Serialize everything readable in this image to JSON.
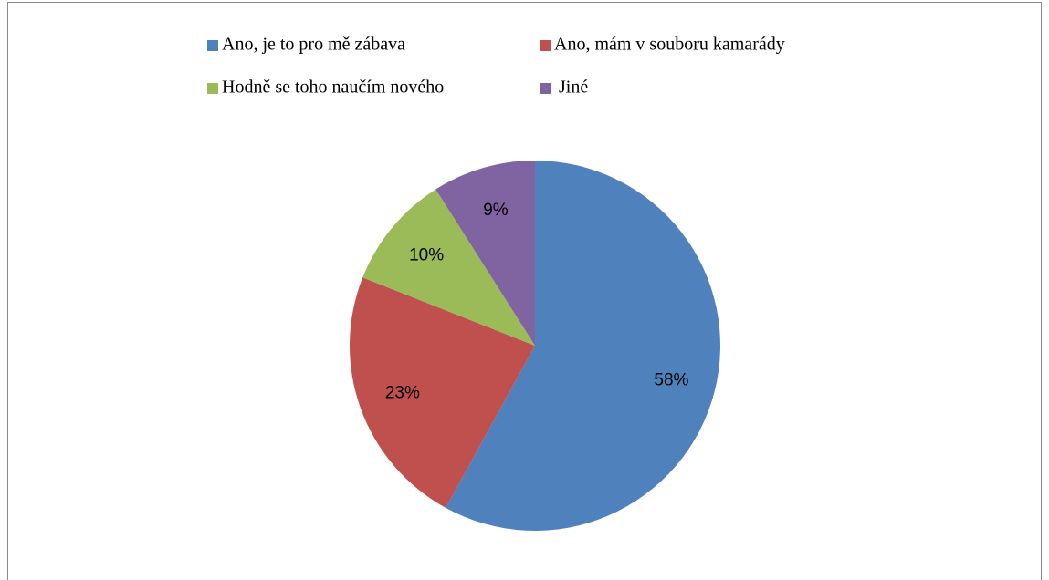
{
  "chart_data": {
    "type": "pie",
    "categories": [
      "Ano, je to pro mě zábava",
      "Ano, mám v souboru kamarády",
      "Hodně se toho naučím nového",
      " Jiné"
    ],
    "values": [
      58,
      23,
      10,
      9
    ],
    "value_labels": [
      "58%",
      "23%",
      "10%",
      "9%"
    ],
    "colors": [
      "#4f81bd",
      "#c0504d",
      "#9bbb59",
      "#8064a2"
    ],
    "legend": "top"
  }
}
